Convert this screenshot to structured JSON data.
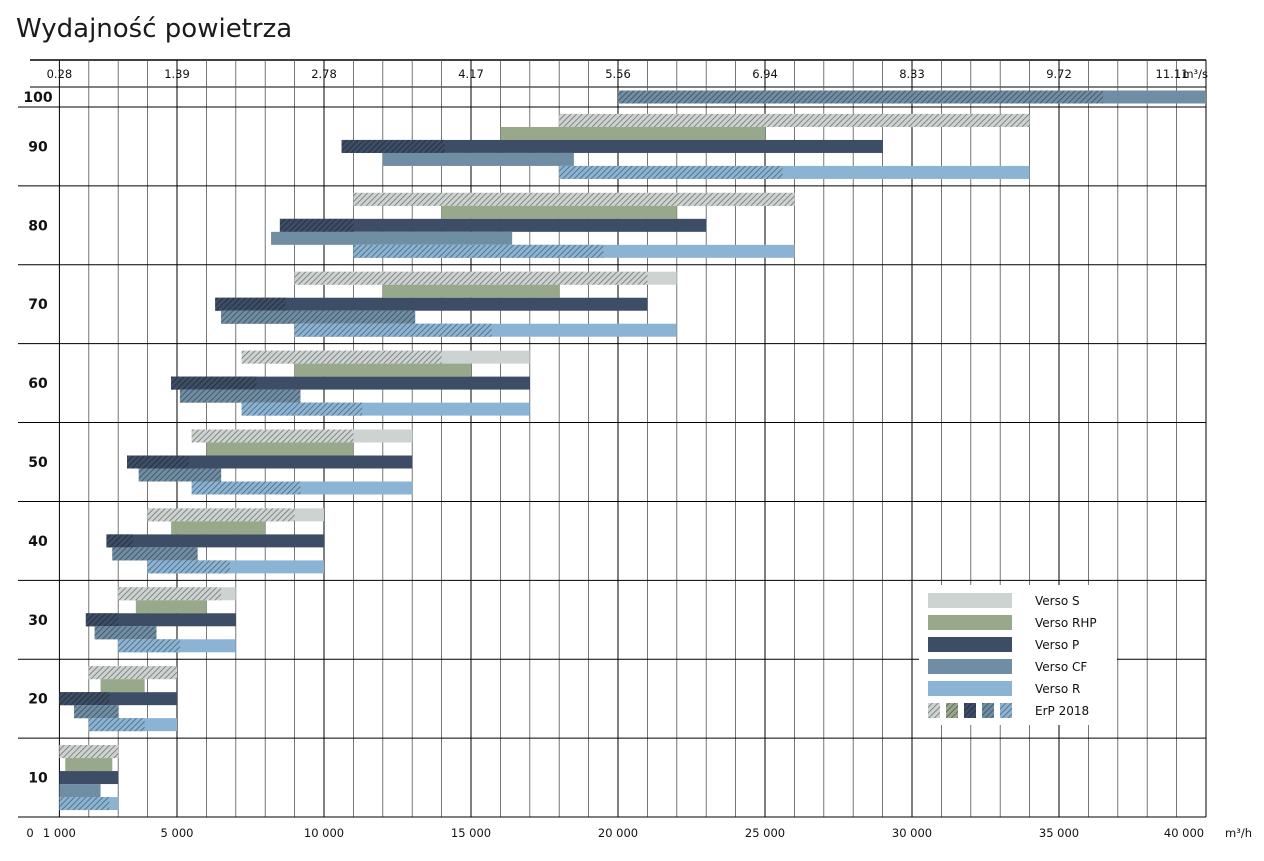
{
  "chart_data": {
    "type": "bar",
    "orientation": "horizontal-range",
    "title": "Wydajność powietrza",
    "x_unit_label": "m³/h",
    "top_unit_label": "m³/s",
    "xlim": [
      0,
      40000
    ],
    "x_ticks": [
      0,
      1000,
      5000,
      10000,
      15000,
      20000,
      25000,
      30000,
      35000,
      40000
    ],
    "x_tick_labels": [
      "0",
      "1 000",
      "5 000",
      "10 000",
      "15 000",
      "20 000",
      "25 000",
      "30 000",
      "35 000",
      "40 000"
    ],
    "top_ticks": [
      1000,
      5000,
      10000,
      15000,
      20000,
      25000,
      30000,
      35000,
      40000
    ],
    "top_tick_labels": [
      "0.28",
      "1.39",
      "2.78",
      "4.17",
      "5.56",
      "6.94",
      "8.33",
      "9.72",
      "11.11"
    ],
    "grid": true,
    "legend_position": "bottom-right",
    "series": [
      {
        "name": "Verso S",
        "color": "#cdd3d1"
      },
      {
        "name": "Verso RHP",
        "color": "#98a88a"
      },
      {
        "name": "Verso P",
        "color": "#3d4d66"
      },
      {
        "name": "Verso CF",
        "color": "#6f8da3"
      },
      {
        "name": "Verso R",
        "color": "#8bb4d4"
      }
    ],
    "erp_label": "ErP 2018",
    "groups": [
      {
        "size": "100",
        "bars": [
          {
            "series": "Verso CF",
            "start": 20000,
            "end": 40000,
            "erp_end": 36500
          }
        ]
      },
      {
        "size": "90",
        "bars": [
          {
            "series": "Verso S",
            "start": 18000,
            "end": 34000,
            "erp_end": 34000
          },
          {
            "series": "Verso RHP",
            "start": 16000,
            "end": 25000,
            "erp_end": null
          },
          {
            "series": "Verso P",
            "start": 10600,
            "end": 29000,
            "erp_end": 14100
          },
          {
            "series": "Verso CF",
            "start": 12000,
            "end": 18500,
            "erp_end": null
          },
          {
            "series": "Verso R",
            "start": 18000,
            "end": 34000,
            "erp_end": 25600
          }
        ]
      },
      {
        "size": "80",
        "bars": [
          {
            "series": "Verso S",
            "start": 11000,
            "end": 26000,
            "erp_end": 26000
          },
          {
            "series": "Verso RHP",
            "start": 14000,
            "end": 22000,
            "erp_end": null
          },
          {
            "series": "Verso P",
            "start": 8500,
            "end": 23000,
            "erp_end": 11000
          },
          {
            "series": "Verso CF",
            "start": 8200,
            "end": 16400,
            "erp_end": null
          },
          {
            "series": "Verso R",
            "start": 11000,
            "end": 26000,
            "erp_end": 19500
          }
        ]
      },
      {
        "size": "70",
        "bars": [
          {
            "series": "Verso S",
            "start": 9000,
            "end": 22000,
            "erp_end": 21000
          },
          {
            "series": "Verso RHP",
            "start": 12000,
            "end": 18000,
            "erp_end": null
          },
          {
            "series": "Verso P",
            "start": 6300,
            "end": 21000,
            "erp_end": 8700
          },
          {
            "series": "Verso CF",
            "start": 6500,
            "end": 13100,
            "erp_end": 13100
          },
          {
            "series": "Verso R",
            "start": 9000,
            "end": 22000,
            "erp_end": 15700
          }
        ]
      },
      {
        "size": "60",
        "bars": [
          {
            "series": "Verso S",
            "start": 7200,
            "end": 17000,
            "erp_end": 14000
          },
          {
            "series": "Verso RHP",
            "start": 9000,
            "end": 15000,
            "erp_end": null
          },
          {
            "series": "Verso P",
            "start": 4800,
            "end": 17000,
            "erp_end": 7700
          },
          {
            "series": "Verso CF",
            "start": 5100,
            "end": 9200,
            "erp_end": 9200
          },
          {
            "series": "Verso R",
            "start": 7200,
            "end": 17000,
            "erp_end": 11300
          }
        ]
      },
      {
        "size": "50",
        "bars": [
          {
            "series": "Verso S",
            "start": 5500,
            "end": 13000,
            "erp_end": 11000
          },
          {
            "series": "Verso RHP",
            "start": 6000,
            "end": 11000,
            "erp_end": null
          },
          {
            "series": "Verso P",
            "start": 3300,
            "end": 13000,
            "erp_end": 5400
          },
          {
            "series": "Verso CF",
            "start": 3700,
            "end": 6500,
            "erp_end": 6500
          },
          {
            "series": "Verso R",
            "start": 5500,
            "end": 13000,
            "erp_end": 9200
          }
        ]
      },
      {
        "size": "40",
        "bars": [
          {
            "series": "Verso S",
            "start": 4000,
            "end": 10000,
            "erp_end": 9000
          },
          {
            "series": "Verso RHP",
            "start": 4800,
            "end": 8000,
            "erp_end": null
          },
          {
            "series": "Verso P",
            "start": 2600,
            "end": 10000,
            "erp_end": 3500
          },
          {
            "series": "Verso CF",
            "start": 2800,
            "end": 5700,
            "erp_end": 5700
          },
          {
            "series": "Verso R",
            "start": 4000,
            "end": 10000,
            "erp_end": 6800
          }
        ]
      },
      {
        "size": "30",
        "bars": [
          {
            "series": "Verso S",
            "start": 3000,
            "end": 7000,
            "erp_end": 6500
          },
          {
            "series": "Verso RHP",
            "start": 3600,
            "end": 6000,
            "erp_end": null
          },
          {
            "series": "Verso P",
            "start": 1900,
            "end": 7000,
            "erp_end": 3000
          },
          {
            "series": "Verso CF",
            "start": 2200,
            "end": 4300,
            "erp_end": 4300
          },
          {
            "series": "Verso R",
            "start": 3000,
            "end": 7000,
            "erp_end": 5100
          }
        ]
      },
      {
        "size": "20",
        "bars": [
          {
            "series": "Verso S",
            "start": 2000,
            "end": 5000,
            "erp_end": 5000
          },
          {
            "series": "Verso RHP",
            "start": 2400,
            "end": 3900,
            "erp_end": null
          },
          {
            "series": "Verso P",
            "start": 1000,
            "end": 5000,
            "erp_end": 2700
          },
          {
            "series": "Verso CF",
            "start": 1500,
            "end": 3000,
            "erp_end": 3000
          },
          {
            "series": "Verso R",
            "start": 2000,
            "end": 5000,
            "erp_end": 3900
          }
        ]
      },
      {
        "size": "10",
        "bars": [
          {
            "series": "Verso S",
            "start": 1000,
            "end": 3000,
            "erp_end": 3000
          },
          {
            "series": "Verso RHP",
            "start": 1200,
            "end": 2800,
            "erp_end": null
          },
          {
            "series": "Verso P",
            "start": 1000,
            "end": 3000,
            "erp_end": null
          },
          {
            "series": "Verso CF",
            "start": 1000,
            "end": 2400,
            "erp_end": null
          },
          {
            "series": "Verso R",
            "start": 1000,
            "end": 3000,
            "erp_end": 2700
          }
        ]
      }
    ]
  }
}
